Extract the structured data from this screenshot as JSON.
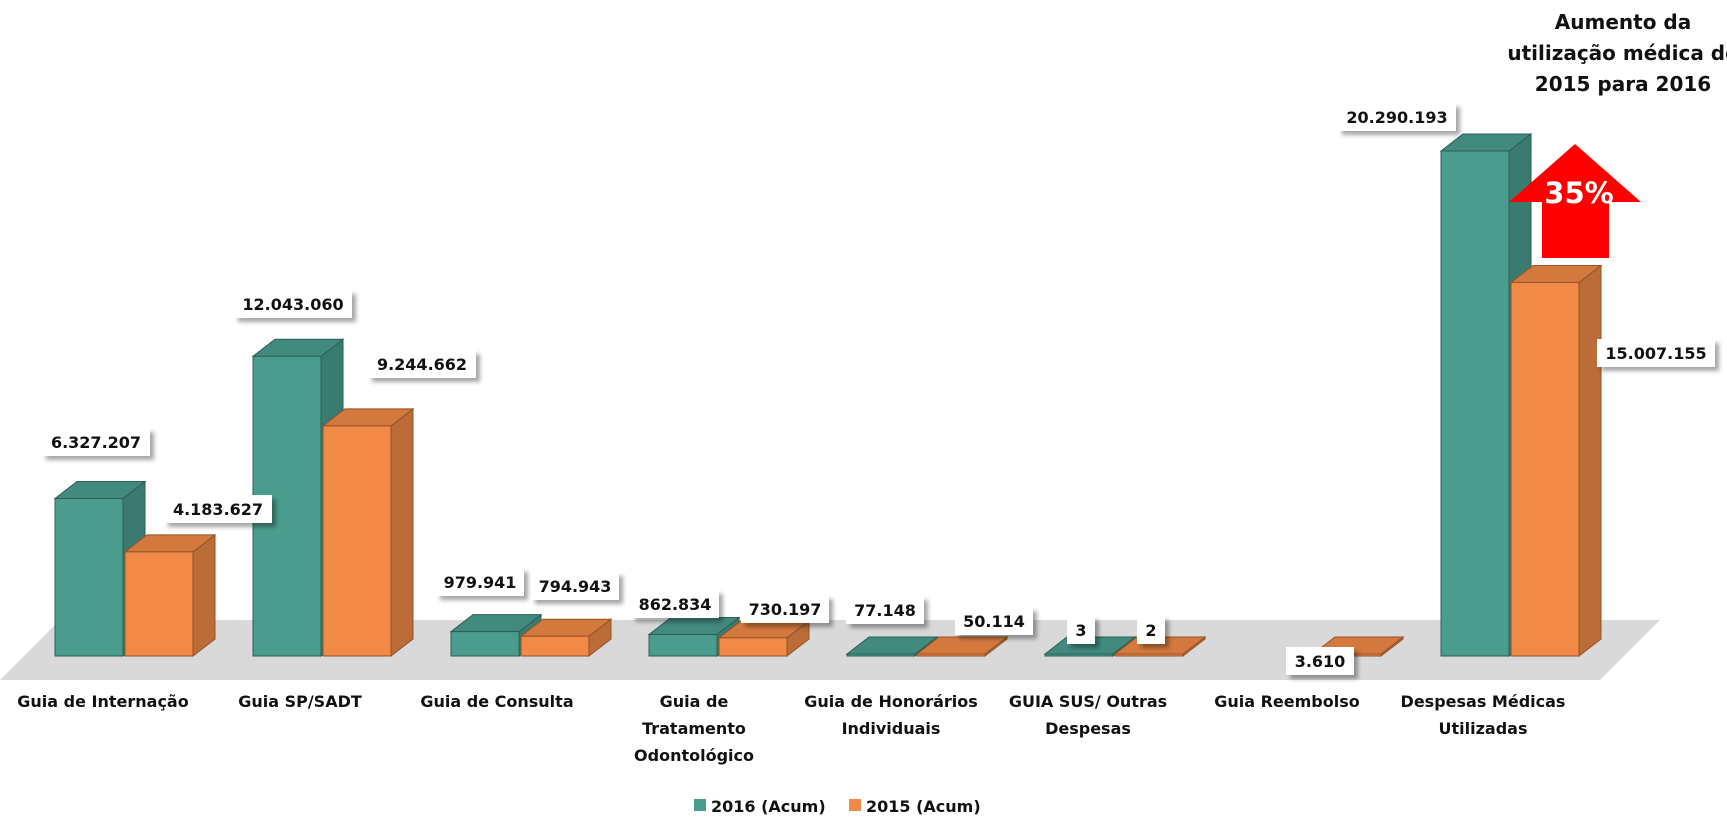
{
  "chart_data": {
    "type": "bar",
    "categories": [
      "Guia de Internação",
      "Guia SP/SADT",
      "Guia de Consulta",
      "Guia de Tratamento Odontológico",
      "Guia de Honorários Individuais",
      "GUIA SUS/ Outras Despesas",
      "Guia Reembolso",
      "Despesas Médicas Utilizadas"
    ],
    "series": [
      {
        "name": "2016 (Acum)",
        "color": "#4a9d8e",
        "values": [
          6327207,
          12043060,
          979941,
          862834,
          77148,
          3,
          0,
          20290193
        ],
        "labels": [
          "6.327.207",
          "12.043.060",
          "979.941",
          "862.834",
          "77.148",
          "3",
          "",
          "20.290.193"
        ]
      },
      {
        "name": "2015 (Acum)",
        "color": "#f08a46",
        "values": [
          4183627,
          9244662,
          794943,
          730197,
          50114,
          2,
          3610,
          15007155
        ],
        "labels": [
          "4.183.627",
          "9.244.662",
          "794.943",
          "730.197",
          "50.114",
          "2",
          "3.610",
          "15.007.155"
        ]
      }
    ],
    "annotation": {
      "text_lines": [
        "Aumento da",
        "utilização médica de",
        "2015 para 2016"
      ],
      "arrow_label": "35%",
      "arrow_color": "#ff0000"
    },
    "legend": {
      "position": "bottom"
    },
    "three_d": true
  }
}
